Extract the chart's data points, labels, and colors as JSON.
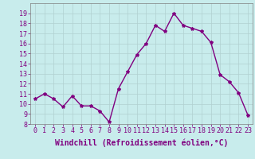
{
  "x": [
    0,
    1,
    2,
    3,
    4,
    5,
    6,
    7,
    8,
    9,
    10,
    11,
    12,
    13,
    14,
    15,
    16,
    17,
    18,
    19,
    20,
    21,
    22,
    23
  ],
  "y": [
    10.5,
    11.0,
    10.5,
    9.7,
    10.8,
    9.8,
    9.8,
    9.3,
    8.2,
    11.5,
    13.2,
    14.9,
    16.0,
    17.8,
    17.2,
    19.0,
    17.8,
    17.5,
    17.2,
    16.1,
    12.9,
    12.2,
    11.1,
    8.9
  ],
  "line_color": "#800080",
  "marker": "*",
  "marker_size": 3,
  "xlabel": "Windchill (Refroidissement éolien,°C)",
  "xlabel_fontsize": 7,
  "ylim": [
    8,
    20
  ],
  "yticks": [
    8,
    9,
    10,
    11,
    12,
    13,
    14,
    15,
    16,
    17,
    18,
    19
  ],
  "xticks": [
    0,
    1,
    2,
    3,
    4,
    5,
    6,
    7,
    8,
    9,
    10,
    11,
    12,
    13,
    14,
    15,
    16,
    17,
    18,
    19,
    20,
    21,
    22,
    23
  ],
  "tick_fontsize": 6,
  "bg_color": "#c8ecec",
  "grid_color": "#b0d0d0",
  "line_width": 1.0,
  "spine_color": "#808080"
}
